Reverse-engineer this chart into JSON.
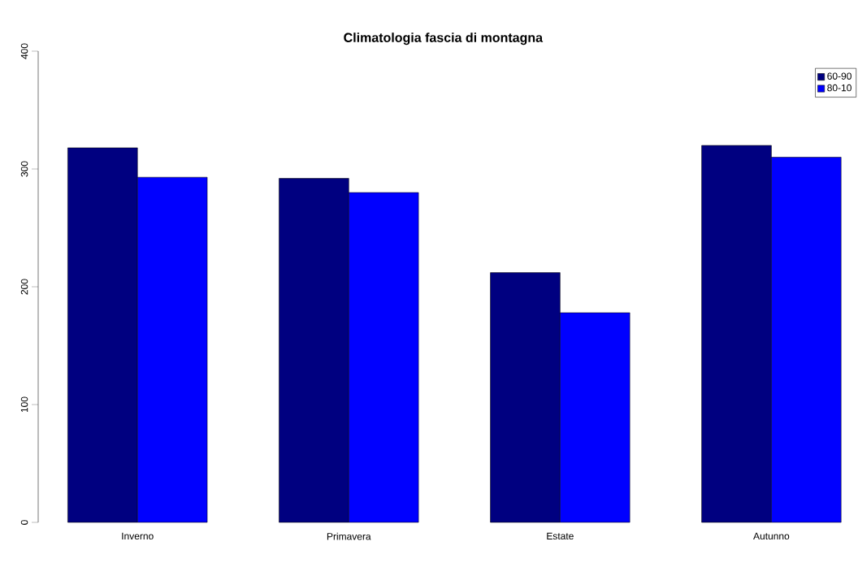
{
  "chart_data": {
    "type": "bar",
    "title": "Climatologia fascia di montagna",
    "categories": [
      "Inverno",
      "Primavera",
      "Estate",
      "Autunno"
    ],
    "series": [
      {
        "name": "60-90",
        "color": "#000080",
        "values": [
          318,
          292,
          212,
          320
        ]
      },
      {
        "name": "80-10",
        "color": "#0000ff",
        "values": [
          293,
          280,
          178,
          310
        ]
      }
    ],
    "ylim": [
      0,
      400
    ],
    "yticks": [
      0,
      100,
      200,
      300,
      400
    ],
    "grid": false,
    "legend": "top right"
  }
}
